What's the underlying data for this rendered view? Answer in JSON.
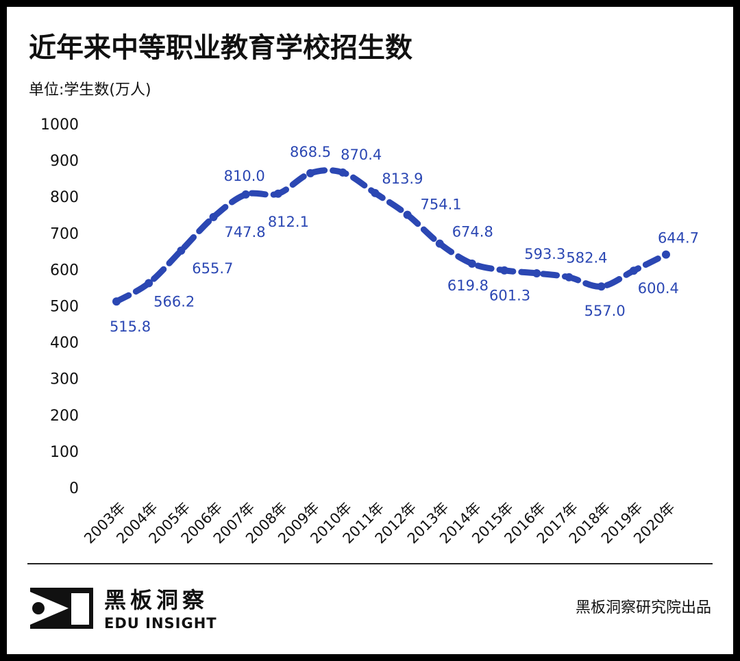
{
  "chart_data": {
    "type": "line",
    "title": "近年来中等职业教育学校招生数",
    "subtitle": "单位:学生数(万人)",
    "categories": [
      "2003年",
      "2004年",
      "2005年",
      "2006年",
      "2007年",
      "2008年",
      "2009年",
      "2010年",
      "2011年",
      "2012年",
      "2013年",
      "2014年",
      "2015年",
      "2016年",
      "2017年",
      "2018年",
      "2019年",
      "2020年"
    ],
    "series": [
      {
        "name": "招生数",
        "color": "#2b47b3",
        "values": [
          515.8,
          566.2,
          655.7,
          747.8,
          810.0,
          812.1,
          868.5,
          870.4,
          813.9,
          754.1,
          674.8,
          619.8,
          601.3,
          593.3,
          582.4,
          557.0,
          600.4,
          644.7
        ],
        "value_labels": [
          "515.8",
          "566.2",
          "655.7",
          "747.8",
          "810.0",
          "812.1",
          "868.5",
          "870.4",
          "813.9",
          "754.1",
          "674.8",
          "619.8",
          "601.3",
          "593.3",
          "582.4",
          "557.0",
          "600.4",
          "644.7"
        ]
      }
    ],
    "ylim": [
      0,
      1000
    ],
    "yticks": [
      0,
      100,
      200,
      300,
      400,
      500,
      600,
      700,
      800,
      900,
      1000
    ],
    "grid": false,
    "logo": {
      "name": "黑板洞察",
      "subtitle": "EDU INSIGHT"
    },
    "source": "黑板洞察研究院出品"
  }
}
